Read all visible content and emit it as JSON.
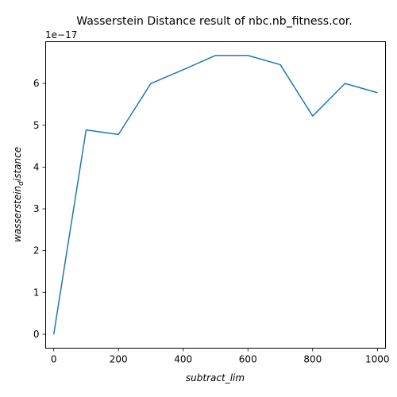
{
  "chart_data": {
    "type": "line",
    "title": "Wasserstein Distance result of nbc.nb_fitness.cor.",
    "xlabel": "subtract_lim",
    "ylabel_main": "wasserstein",
    "ylabel_sub": "d",
    "ylabel_tail": "istance",
    "y_offset_text": "1e−17",
    "x": [
      0,
      100,
      200,
      300,
      400,
      500,
      600,
      700,
      800,
      900,
      1000
    ],
    "y": [
      0.0,
      4.89,
      4.78,
      6.0,
      6.33,
      6.67,
      6.67,
      6.45,
      5.22,
      6.0,
      5.78
    ],
    "xlim": [
      -25,
      1025
    ],
    "ylim": [
      -0.333,
      7.0
    ],
    "xticks": [
      0,
      200,
      400,
      600,
      800,
      1000
    ],
    "yticks": [
      0,
      1,
      2,
      3,
      4,
      5,
      6
    ],
    "line_color": "#1f77b4",
    "grid": false
  }
}
